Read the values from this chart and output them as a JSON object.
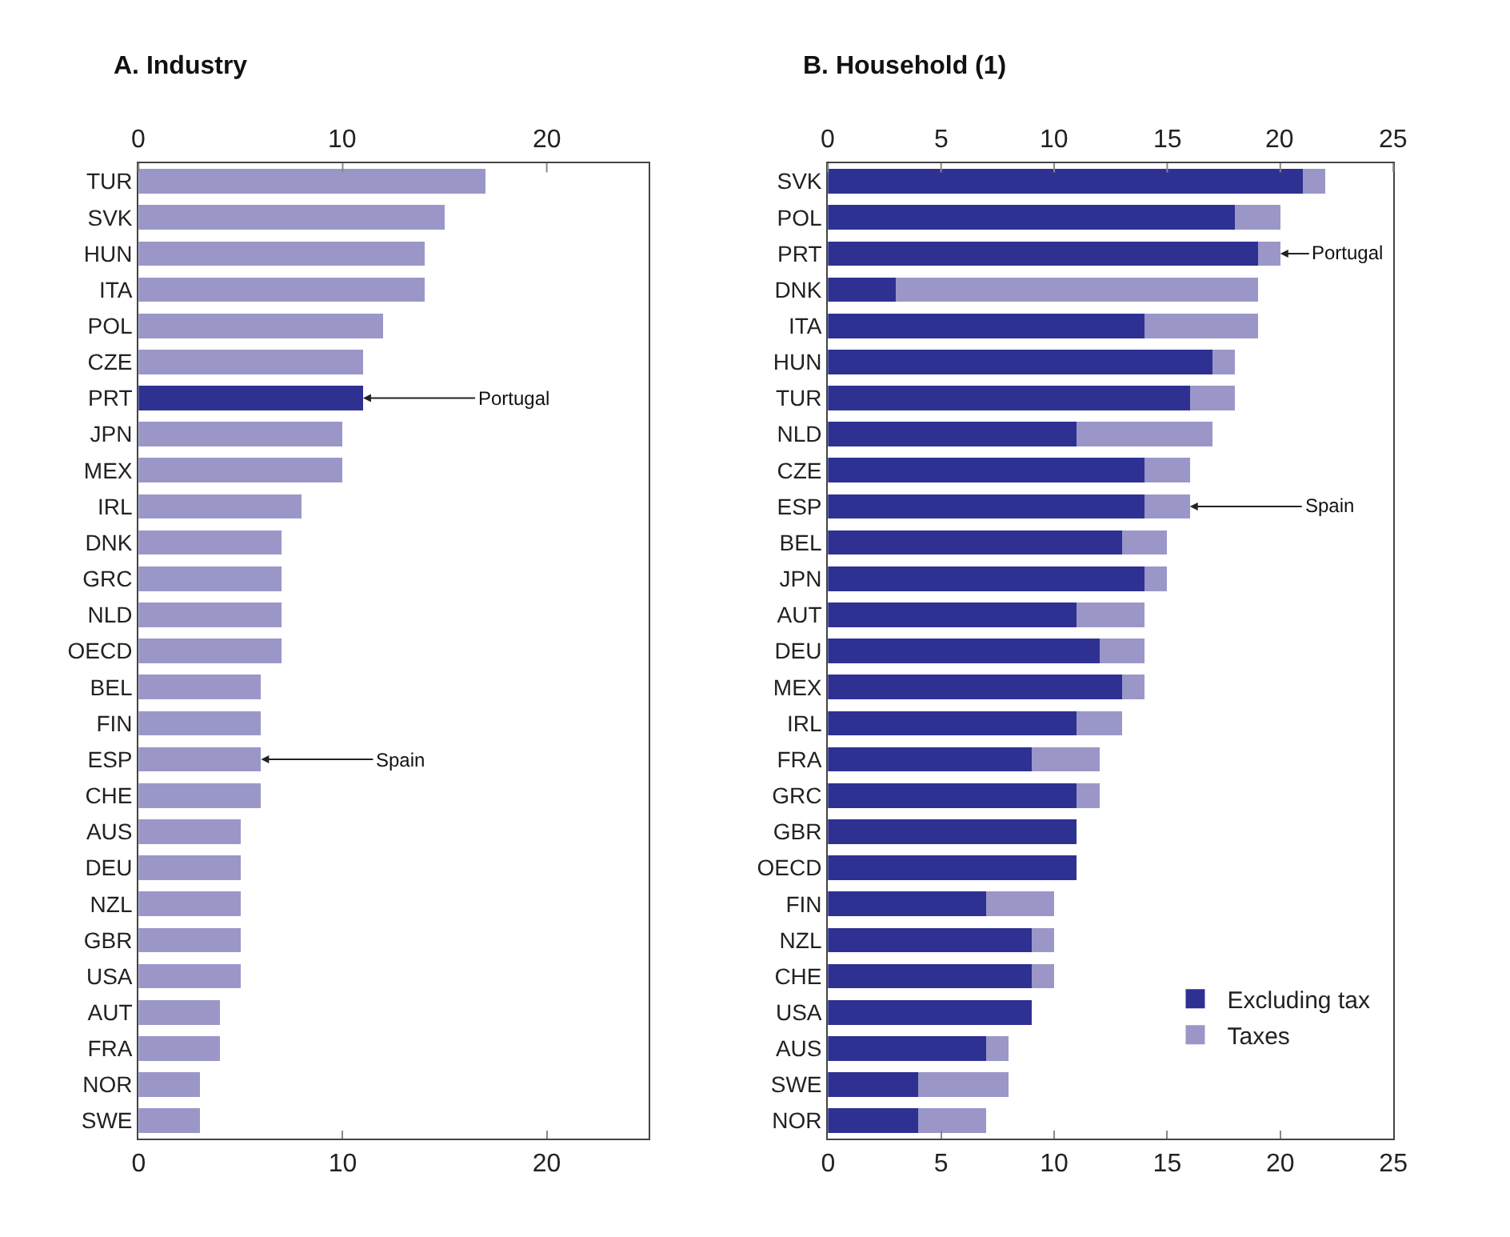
{
  "chart_data": [
    {
      "type": "bar",
      "title": "A. Industry",
      "orientation": "horizontal",
      "categories": [
        "TUR",
        "SVK",
        "HUN",
        "ITA",
        "POL",
        "CZE",
        "PRT",
        "JPN",
        "MEX",
        "IRL",
        "DNK",
        "GRC",
        "NLD",
        "OECD",
        "BEL",
        "FIN",
        "ESP",
        "CHE",
        "AUS",
        "DEU",
        "NZL",
        "GBR",
        "USA",
        "AUT",
        "FRA",
        "NOR",
        "SWE"
      ],
      "values": [
        17,
        15,
        14,
        14,
        12,
        11,
        11,
        10,
        10,
        8,
        7,
        7,
        7,
        7,
        6,
        6,
        6,
        6,
        5,
        5,
        5,
        5,
        5,
        4,
        4,
        3,
        3
      ],
      "colors": [
        "#9a97c8",
        "#9a97c8",
        "#9a97c8",
        "#9a97c8",
        "#9a97c8",
        "#9a97c8",
        "#2e3192",
        "#9a97c8",
        "#9a97c8",
        "#9a97c8",
        "#9a97c8",
        "#9a97c8",
        "#9a97c8",
        "#9a97c8",
        "#9a97c8",
        "#9a97c8",
        "#9a97c8",
        "#9a97c8",
        "#9a97c8",
        "#9a97c8",
        "#9a97c8",
        "#9a97c8",
        "#9a97c8",
        "#9a97c8",
        "#9a97c8",
        "#9a97c8",
        "#9a97c8"
      ],
      "xlim": [
        0,
        25
      ],
      "xticks": [
        0,
        10,
        20
      ],
      "x2lim": [
        0,
        25
      ],
      "x2ticks": [
        0,
        10,
        20
      ],
      "annotations": [
        {
          "text": "Portugal",
          "x": 11,
          "y": "PRT"
        },
        {
          "text": "Spain",
          "x": 6,
          "y": "ESP"
        }
      ],
      "legend": false
    },
    {
      "type": "bar",
      "title": "B. Household (1)",
      "orientation": "horizontal",
      "stacked": true,
      "categories": [
        "SVK",
        "POL",
        "PRT",
        "DNK",
        "ITA",
        "HUN",
        "TUR",
        "NLD",
        "CZE",
        "ESP",
        "BEL",
        "JPN",
        "AUT",
        "DEU",
        "MEX",
        "IRL",
        "FRA",
        "GRC",
        "GBR",
        "OECD",
        "FIN",
        "NZL",
        "CHE",
        "USA",
        "AUS",
        "SWE",
        "NOR"
      ],
      "series": [
        {
          "name": "Excluding tax",
          "color": "#2e3192",
          "values": [
            21,
            18,
            19,
            3,
            14,
            17,
            16,
            11,
            14,
            14,
            13,
            14,
            11,
            12,
            13,
            11,
            9,
            11,
            11,
            11,
            7,
            9,
            9,
            9,
            7,
            4,
            4
          ]
        },
        {
          "name": "Taxes",
          "color": "#9a97c8",
          "values": [
            1,
            2,
            1,
            16,
            5,
            1,
            2,
            6,
            2,
            2,
            2,
            1,
            3,
            2,
            1,
            2,
            3,
            1,
            0,
            0,
            3,
            1,
            1,
            0,
            1,
            4,
            3
          ]
        }
      ],
      "xlim": [
        0,
        25
      ],
      "xticks": [
        0,
        5,
        10,
        15,
        20,
        25
      ],
      "x2lim": [
        0,
        25
      ],
      "x2ticks": [
        0,
        5,
        10,
        15,
        20,
        25
      ],
      "annotations": [
        {
          "text": "Portugal",
          "x": 20,
          "y": "PRT"
        },
        {
          "text": "Spain",
          "x": 16,
          "y": "ESP"
        }
      ],
      "legend": "bottom right"
    }
  ]
}
